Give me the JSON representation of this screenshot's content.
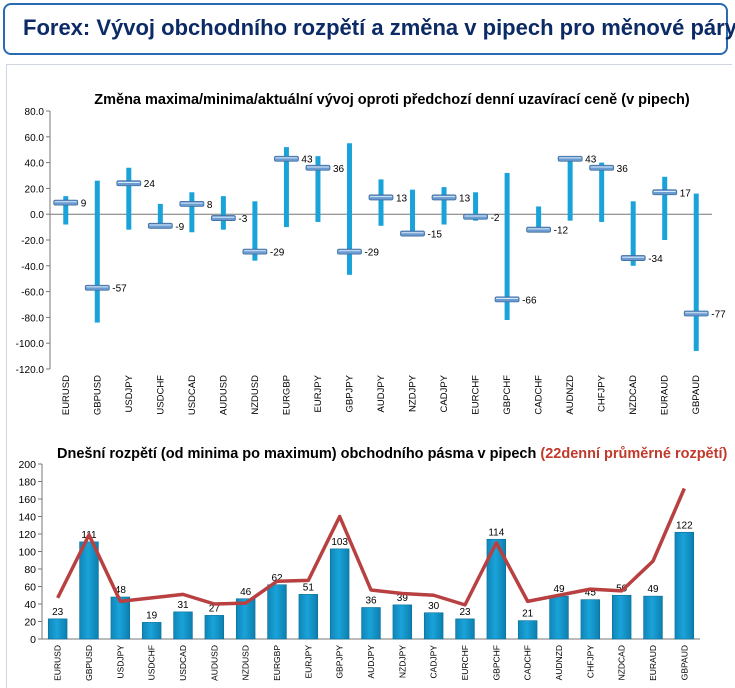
{
  "header": {
    "title": "Forex: Vývoj obchodního rozpětí a změna v pipech pro měnové páry"
  },
  "colors": {
    "bar": "#1aa3d9",
    "marker": "#6a9bd1",
    "avg_line": "#b84040",
    "header_text": "#0c2a66",
    "header_border": "#2a6ab3",
    "avg_title": "#c0392b"
  },
  "chart_data": [
    {
      "type": "bar",
      "title": "Změna maxima/minima/aktuální vývoj oproti předchozí denní uzavírací ceně (v pipech)",
      "categories": [
        "EURUSD",
        "GBPUSD",
        "USDJPY",
        "USDCHF",
        "USDCAD",
        "AUDUSD",
        "NZDUSD",
        "EURGBP",
        "EURJPY",
        "GBPJPY",
        "AUDJPY",
        "NZDJPY",
        "CADJPY",
        "EURCHF",
        "GBPCHF",
        "CADCHF",
        "AUDNZD",
        "CHFJPY",
        "NZDCAD",
        "EURAUD",
        "GBPAUD"
      ],
      "high": [
        14,
        26,
        36,
        8,
        17,
        14,
        10,
        52,
        45,
        55,
        27,
        19,
        21,
        17,
        32,
        6,
        43,
        40,
        10,
        29,
        16
      ],
      "low": [
        -8,
        -84,
        -12,
        -11,
        -14,
        -12,
        -36,
        -10,
        -6,
        -47,
        -9,
        -17,
        -8,
        -5,
        -82,
        -14,
        -5,
        -6,
        -40,
        -20,
        -106
      ],
      "current": [
        9,
        -57,
        24,
        -9,
        8,
        -3,
        -29,
        43,
        36,
        -29,
        13,
        -15,
        13,
        -2,
        -66,
        -12,
        43,
        36,
        -34,
        17,
        -77
      ],
      "value_labels": [
        "9",
        "-57",
        "24",
        "-9",
        "8",
        "-3",
        "-29",
        "43",
        "36",
        "-29",
        "13",
        "-15",
        "13",
        "-2",
        "-66",
        "-12",
        "43",
        "36",
        "-34",
        "17",
        "-77"
      ],
      "ylim": [
        -120,
        80
      ],
      "yticks": [
        "-120.0",
        "-100.0",
        "-80.0",
        "-60.0",
        "-40.0",
        "-20.0",
        "0.0",
        "20.0",
        "40.0",
        "60.0",
        "80.0"
      ],
      "grid": false
    },
    {
      "type": "bar",
      "title": "Dnešní rozpětí (od minima po maximum) obchodního pásma v pipech",
      "title_suffix": "(22denní průměrné rozpětí)",
      "categories": [
        "EURUSD",
        "GBPUSD",
        "USDJPY",
        "USDCHF",
        "USDCAD",
        "AUDUSD",
        "NZDUSD",
        "EURGBP",
        "EURJPY",
        "GBPJPY",
        "AUDJPY",
        "NZDJPY",
        "CADJPY",
        "EURCHF",
        "GBPCHF",
        "CADCHF",
        "AUDNZD",
        "CHFJPY",
        "NZDCAD",
        "EURAUD",
        "GBPAUD"
      ],
      "values": [
        23,
        111,
        48,
        19,
        31,
        27,
        46,
        62,
        51,
        103,
        36,
        39,
        30,
        23,
        114,
        21,
        49,
        45,
        50,
        49,
        122
      ],
      "value_labels": [
        "23",
        "111",
        "48",
        "19",
        "31",
        "27",
        "46",
        "62",
        "51",
        "103",
        "36",
        "39",
        "30",
        "23",
        "114",
        "21",
        "49",
        "45",
        "50",
        "49",
        "122"
      ],
      "average": [
        47,
        119,
        43,
        47,
        51,
        40,
        41,
        66,
        67,
        140,
        56,
        52,
        50,
        39,
        110,
        43,
        50,
        57,
        55,
        89,
        172
      ],
      "ylim": [
        0,
        200
      ],
      "yticks": [
        "0",
        "20",
        "40",
        "60",
        "80",
        "100",
        "120",
        "140",
        "160",
        "180",
        "200"
      ],
      "grid": false
    }
  ]
}
